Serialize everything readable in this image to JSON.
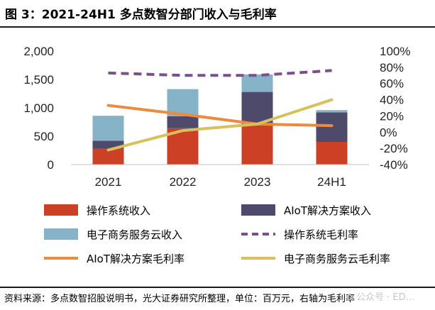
{
  "header": {
    "title": "图 3：2021-24H1 多点数智分部门收入与毛利率"
  },
  "footer": {
    "source": "资料来源：多点数智招股说明书，光大证券研究所整理，单位：百万元，右轴为毛利率",
    "watermark": "✿ 公众号 · ED..."
  },
  "colors": {
    "os_revenue": "#cc4125",
    "aiot_revenue": "#4e4a6b",
    "ecom_revenue": "#87b3c8",
    "os_margin": "#7b4f8e",
    "aiot_margin": "#ef8a3c",
    "ecom_margin": "#d9c05a"
  },
  "chart_data": {
    "type": "bar",
    "stacked": true,
    "categories": [
      "2021",
      "2022",
      "2023",
      "24H1"
    ],
    "left_axis": {
      "ylim": [
        0,
        2000
      ],
      "ticks": [
        0,
        500,
        1000,
        1500,
        2000
      ],
      "tick_labels": [
        "0",
        "500",
        "1,000",
        "1,500",
        "2,000"
      ]
    },
    "right_axis": {
      "ylim": [
        -40,
        100
      ],
      "ticks": [
        -40,
        -20,
        0,
        20,
        40,
        60,
        80,
        100
      ],
      "tick_labels": [
        "-40%",
        "-20%",
        "0%",
        "20%",
        "40%",
        "60%",
        "80%",
        "100%"
      ]
    },
    "series": [
      {
        "name": "操作系统收入",
        "kind": "bar",
        "axis": "left",
        "values": [
          280,
          640,
          690,
          400
        ]
      },
      {
        "name": "AIoT解决方案收入",
        "kind": "bar",
        "axis": "left",
        "values": [
          140,
          210,
          590,
          520
        ]
      },
      {
        "name": "电子商务服务云收入",
        "kind": "bar",
        "axis": "left",
        "values": [
          440,
          480,
          310,
          40
        ]
      },
      {
        "name": "操作系统毛利率",
        "kind": "line",
        "style": "dashed",
        "axis": "right",
        "values": [
          73,
          70,
          70,
          76
        ]
      },
      {
        "name": "AIoT解决方案毛利率",
        "kind": "line",
        "style": "solid",
        "axis": "right",
        "values": [
          33,
          22,
          10,
          8
        ]
      },
      {
        "name": "电子商务服务云毛利率",
        "kind": "line",
        "style": "solid",
        "axis": "right",
        "values": [
          -22,
          2,
          10,
          40
        ]
      }
    ]
  }
}
